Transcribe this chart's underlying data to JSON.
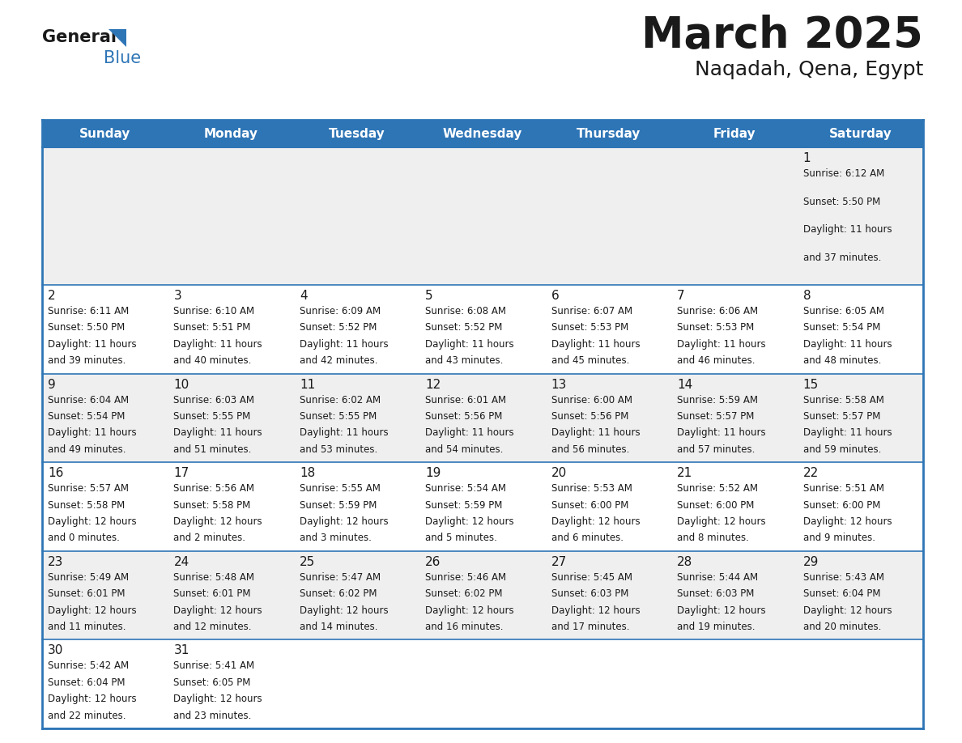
{
  "title": "March 2025",
  "subtitle": "Naqadah, Qena, Egypt",
  "header_bg": "#2E75B6",
  "header_text_color": "#FFFFFF",
  "cell_bg_odd": "#EFEFEF",
  "cell_bg_even": "#FFFFFF",
  "border_color": "#2E75B6",
  "text_color": "#1a1a1a",
  "days_of_week": [
    "Sunday",
    "Monday",
    "Tuesday",
    "Wednesday",
    "Thursday",
    "Friday",
    "Saturday"
  ],
  "calendar_data": [
    [
      null,
      null,
      null,
      null,
      null,
      null,
      {
        "day": 1,
        "sunrise": "6:12 AM",
        "sunset": "5:50 PM",
        "daylight": "11 hours and 37 minutes."
      }
    ],
    [
      {
        "day": 2,
        "sunrise": "6:11 AM",
        "sunset": "5:50 PM",
        "daylight": "11 hours and 39 minutes."
      },
      {
        "day": 3,
        "sunrise": "6:10 AM",
        "sunset": "5:51 PM",
        "daylight": "11 hours and 40 minutes."
      },
      {
        "day": 4,
        "sunrise": "6:09 AM",
        "sunset": "5:52 PM",
        "daylight": "11 hours and 42 minutes."
      },
      {
        "day": 5,
        "sunrise": "6:08 AM",
        "sunset": "5:52 PM",
        "daylight": "11 hours and 43 minutes."
      },
      {
        "day": 6,
        "sunrise": "6:07 AM",
        "sunset": "5:53 PM",
        "daylight": "11 hours and 45 minutes."
      },
      {
        "day": 7,
        "sunrise": "6:06 AM",
        "sunset": "5:53 PM",
        "daylight": "11 hours and 46 minutes."
      },
      {
        "day": 8,
        "sunrise": "6:05 AM",
        "sunset": "5:54 PM",
        "daylight": "11 hours and 48 minutes."
      }
    ],
    [
      {
        "day": 9,
        "sunrise": "6:04 AM",
        "sunset": "5:54 PM",
        "daylight": "11 hours and 49 minutes."
      },
      {
        "day": 10,
        "sunrise": "6:03 AM",
        "sunset": "5:55 PM",
        "daylight": "11 hours and 51 minutes."
      },
      {
        "day": 11,
        "sunrise": "6:02 AM",
        "sunset": "5:55 PM",
        "daylight": "11 hours and 53 minutes."
      },
      {
        "day": 12,
        "sunrise": "6:01 AM",
        "sunset": "5:56 PM",
        "daylight": "11 hours and 54 minutes."
      },
      {
        "day": 13,
        "sunrise": "6:00 AM",
        "sunset": "5:56 PM",
        "daylight": "11 hours and 56 minutes."
      },
      {
        "day": 14,
        "sunrise": "5:59 AM",
        "sunset": "5:57 PM",
        "daylight": "11 hours and 57 minutes."
      },
      {
        "day": 15,
        "sunrise": "5:58 AM",
        "sunset": "5:57 PM",
        "daylight": "11 hours and 59 minutes."
      }
    ],
    [
      {
        "day": 16,
        "sunrise": "5:57 AM",
        "sunset": "5:58 PM",
        "daylight": "12 hours and 0 minutes."
      },
      {
        "day": 17,
        "sunrise": "5:56 AM",
        "sunset": "5:58 PM",
        "daylight": "12 hours and 2 minutes."
      },
      {
        "day": 18,
        "sunrise": "5:55 AM",
        "sunset": "5:59 PM",
        "daylight": "12 hours and 3 minutes."
      },
      {
        "day": 19,
        "sunrise": "5:54 AM",
        "sunset": "5:59 PM",
        "daylight": "12 hours and 5 minutes."
      },
      {
        "day": 20,
        "sunrise": "5:53 AM",
        "sunset": "6:00 PM",
        "daylight": "12 hours and 6 minutes."
      },
      {
        "day": 21,
        "sunrise": "5:52 AM",
        "sunset": "6:00 PM",
        "daylight": "12 hours and 8 minutes."
      },
      {
        "day": 22,
        "sunrise": "5:51 AM",
        "sunset": "6:00 PM",
        "daylight": "12 hours and 9 minutes."
      }
    ],
    [
      {
        "day": 23,
        "sunrise": "5:49 AM",
        "sunset": "6:01 PM",
        "daylight": "12 hours and 11 minutes."
      },
      {
        "day": 24,
        "sunrise": "5:48 AM",
        "sunset": "6:01 PM",
        "daylight": "12 hours and 12 minutes."
      },
      {
        "day": 25,
        "sunrise": "5:47 AM",
        "sunset": "6:02 PM",
        "daylight": "12 hours and 14 minutes."
      },
      {
        "day": 26,
        "sunrise": "5:46 AM",
        "sunset": "6:02 PM",
        "daylight": "12 hours and 16 minutes."
      },
      {
        "day": 27,
        "sunrise": "5:45 AM",
        "sunset": "6:03 PM",
        "daylight": "12 hours and 17 minutes."
      },
      {
        "day": 28,
        "sunrise": "5:44 AM",
        "sunset": "6:03 PM",
        "daylight": "12 hours and 19 minutes."
      },
      {
        "day": 29,
        "sunrise": "5:43 AM",
        "sunset": "6:04 PM",
        "daylight": "12 hours and 20 minutes."
      }
    ],
    [
      {
        "day": 30,
        "sunrise": "5:42 AM",
        "sunset": "6:04 PM",
        "daylight": "12 hours and 22 minutes."
      },
      {
        "day": 31,
        "sunrise": "5:41 AM",
        "sunset": "6:05 PM",
        "daylight": "12 hours and 23 minutes."
      },
      null,
      null,
      null,
      null,
      null
    ]
  ],
  "row_height_ratios": [
    1.55,
    1.0,
    1.0,
    1.0,
    1.0,
    1.0
  ]
}
